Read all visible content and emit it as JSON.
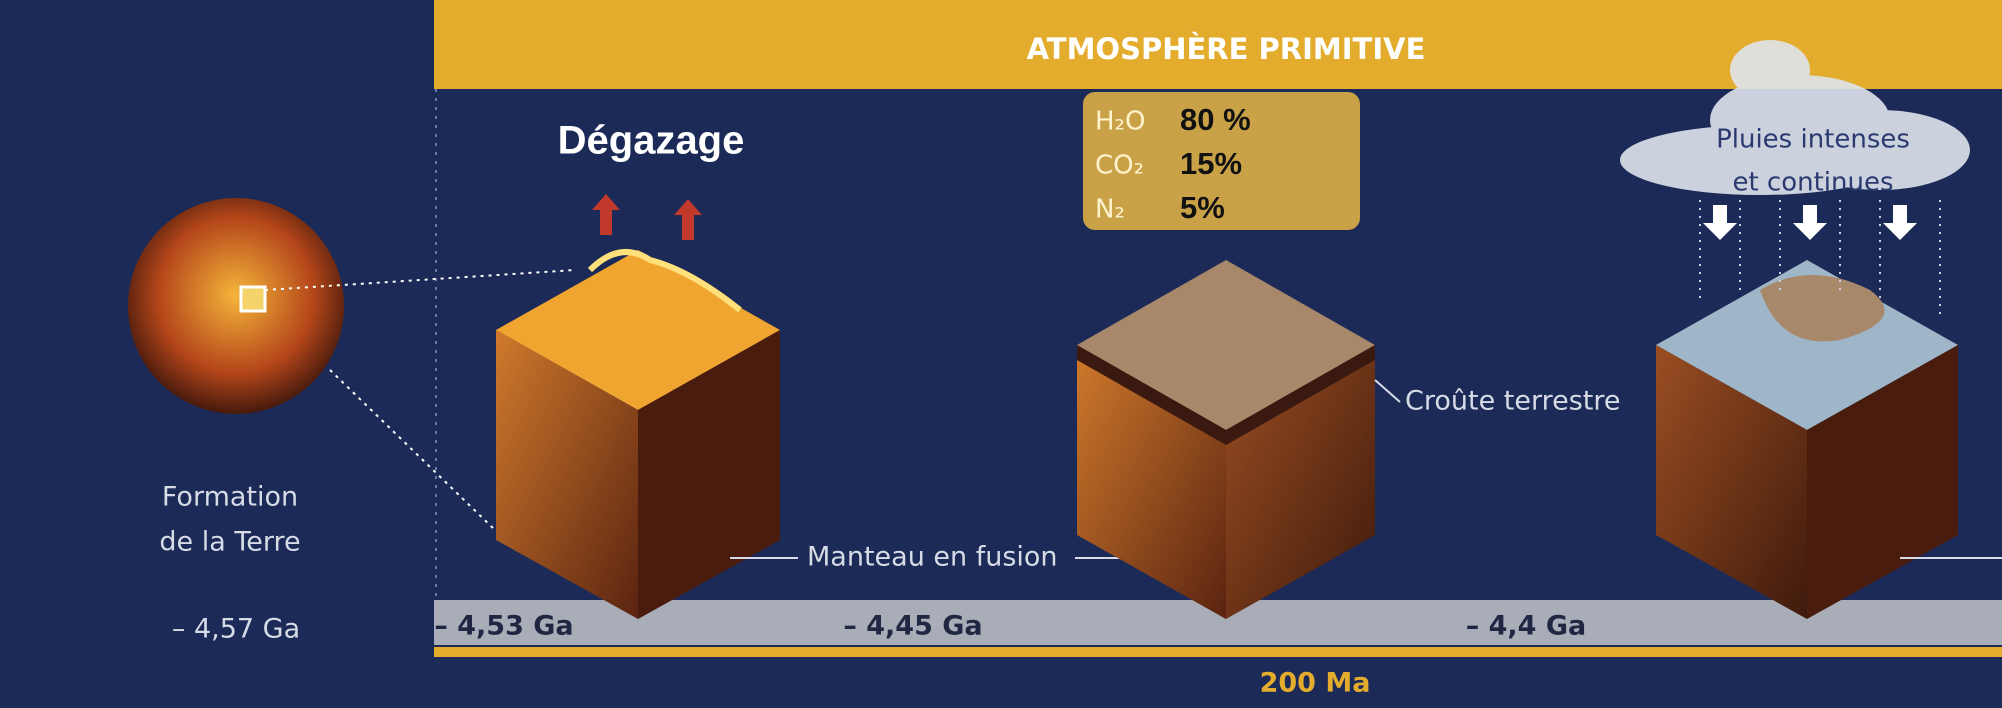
{
  "header": {
    "title": "ATMOSPHÈRE PRIMITIVE"
  },
  "degassing": "Dégazage",
  "atmosphere": [
    {
      "gas": "H₂O",
      "share": "80 %"
    },
    {
      "gas": "CO₂",
      "share": "15%"
    },
    {
      "gas": "N₂",
      "share": "5%"
    }
  ],
  "stages": [
    {
      "label": "Formation de la Terre",
      "time": "– 4,57 Ga"
    },
    {
      "label": "Manteau en fusion",
      "time": "– 4,53 Ga"
    },
    {
      "label": "Croûte terrestre",
      "time": "– 4,45 Ga"
    },
    {
      "label": "Pluies intenses et continues",
      "time": "– 4,4 Ga"
    }
  ],
  "duration": "200 Ma"
}
